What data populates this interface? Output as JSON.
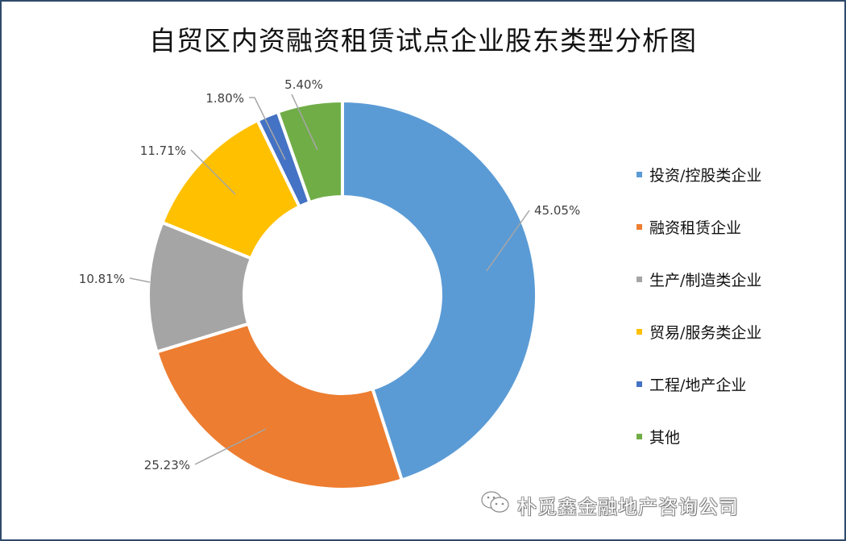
{
  "chart_data": {
    "type": "pie",
    "subtype": "donut",
    "title": "自贸区内资融资租赁试点企业股东类型分析图",
    "categories": [
      "投资/控股类企业",
      "融资租赁企业",
      "生产/制造类企业",
      "贸易/服务类企业",
      "工程/地产企业",
      "其他"
    ],
    "values": [
      45.05,
      25.23,
      10.81,
      11.71,
      1.8,
      5.4
    ],
    "labels": [
      "45.05%",
      "25.23%",
      "10.81%",
      "11.71%",
      "1.80%",
      "5.40%"
    ],
    "colors": [
      "#5b9bd5",
      "#ed7d31",
      "#a5a5a5",
      "#ffc000",
      "#4472c4",
      "#70ad47"
    ],
    "legend_position": "right",
    "start_angle": "12 o'clock, clockwise"
  },
  "title": "自贸区内资融资租赁试点企业股东类型分析图",
  "legend": {
    "items": [
      {
        "label": "投资/控股类企业",
        "color": "#5b9bd5"
      },
      {
        "label": "融资租赁企业",
        "color": "#ed7d31"
      },
      {
        "label": "生产/制造类企业",
        "color": "#a5a5a5"
      },
      {
        "label": "贸易/服务类企业",
        "color": "#ffc000"
      },
      {
        "label": "工程/地产企业",
        "color": "#4472c4"
      },
      {
        "label": "其他",
        "color": "#70ad47"
      }
    ]
  },
  "watermark": {
    "text": "朴觅鑫金融地产咨询公司",
    "icon": "wechat-icon"
  }
}
